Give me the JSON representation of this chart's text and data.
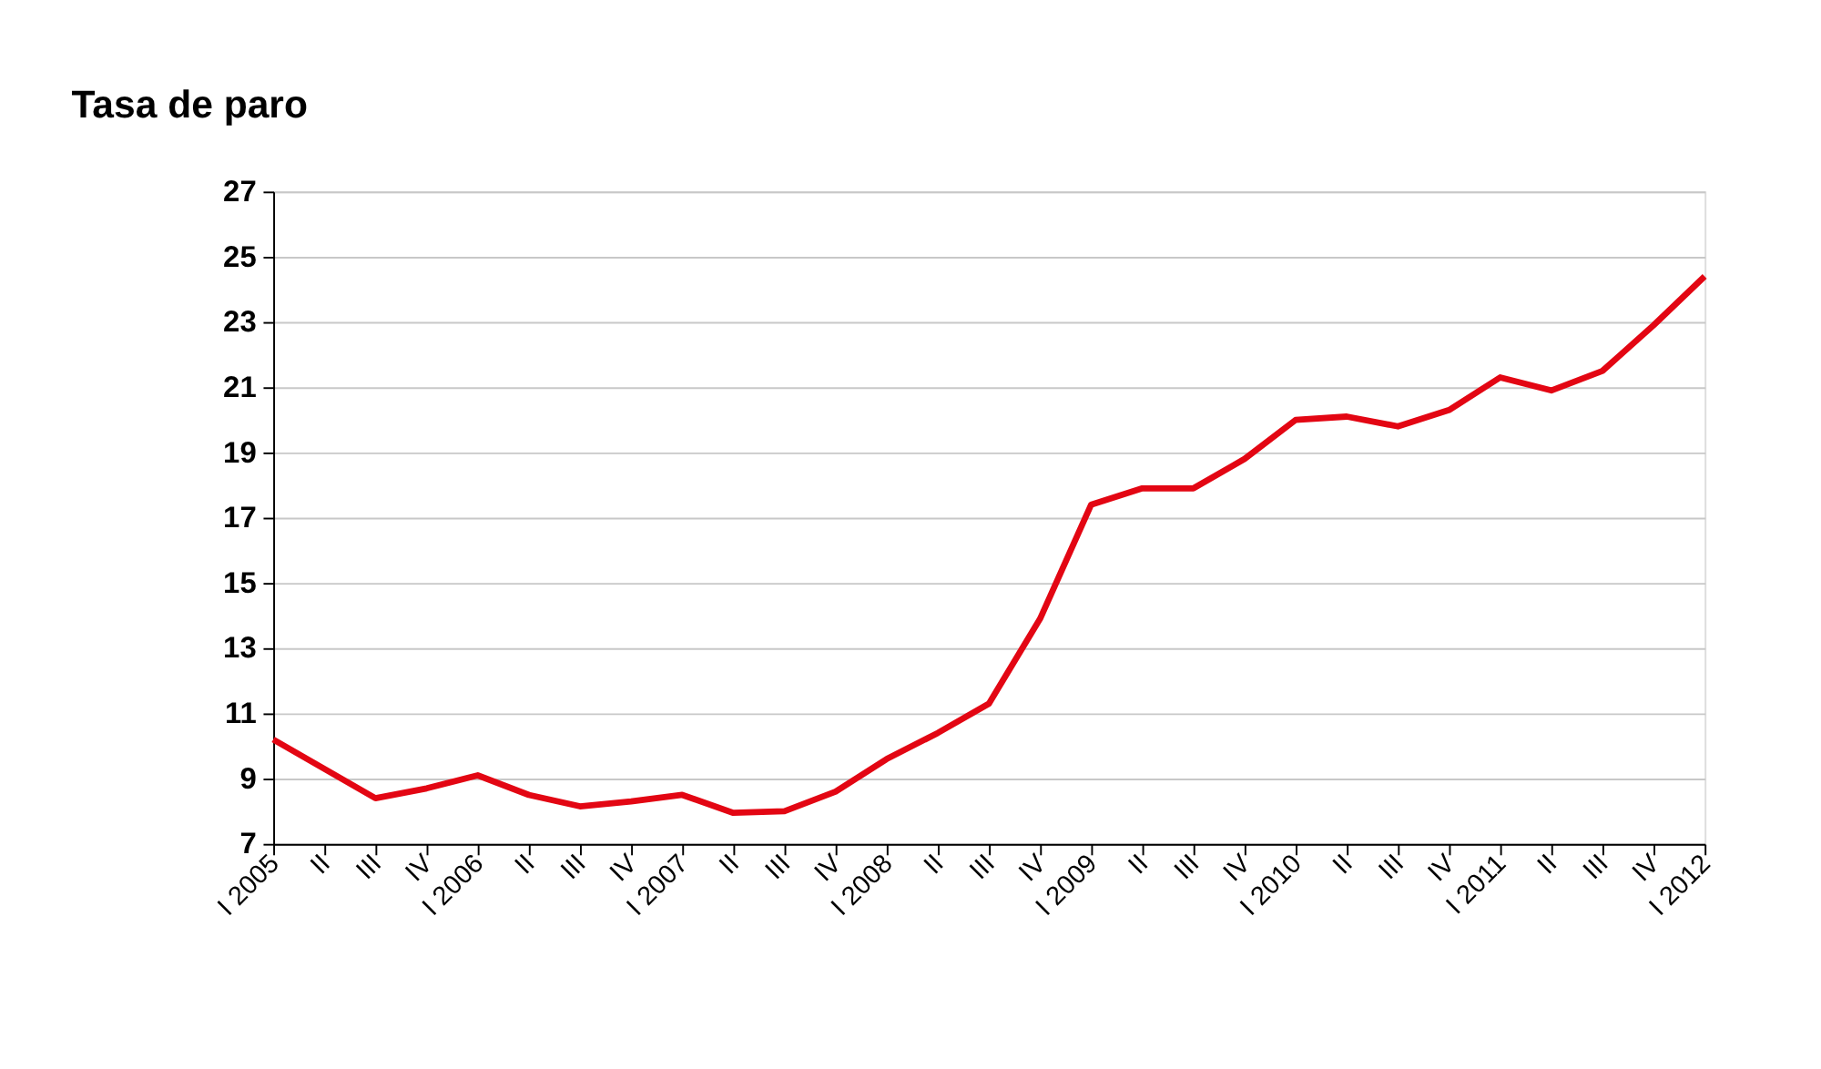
{
  "chart_data": {
    "type": "line",
    "title": "Tasa de paro",
    "categories": [
      "I 2005",
      "II",
      "III",
      "IV",
      "I 2006",
      "II",
      "III",
      "IV",
      "I 2007",
      "II",
      "III",
      "IV",
      "I 2008",
      "II",
      "III",
      "IV",
      "I 2009",
      "II",
      "III",
      "IV",
      "I 2010",
      "II",
      "III",
      "IV",
      "I 2011",
      "II",
      "III",
      "IV",
      "I 2012"
    ],
    "series": [
      {
        "color": "#e30613",
        "values": [
          10.2,
          9.3,
          8.4,
          8.7,
          9.1,
          8.5,
          8.15,
          8.3,
          8.5,
          7.95,
          8.0,
          8.6,
          9.6,
          10.4,
          11.3,
          13.9,
          17.4,
          17.9,
          17.9,
          18.8,
          20.0,
          20.1,
          19.8,
          20.3,
          21.3,
          20.9,
          21.5,
          22.9,
          24.4
        ]
      }
    ],
    "ylim": [
      7,
      27
    ],
    "yticks": [
      7,
      9,
      11,
      13,
      15,
      17,
      19,
      21,
      23,
      25,
      27
    ],
    "grid": "y",
    "marker": "none",
    "line_style": "solid"
  }
}
